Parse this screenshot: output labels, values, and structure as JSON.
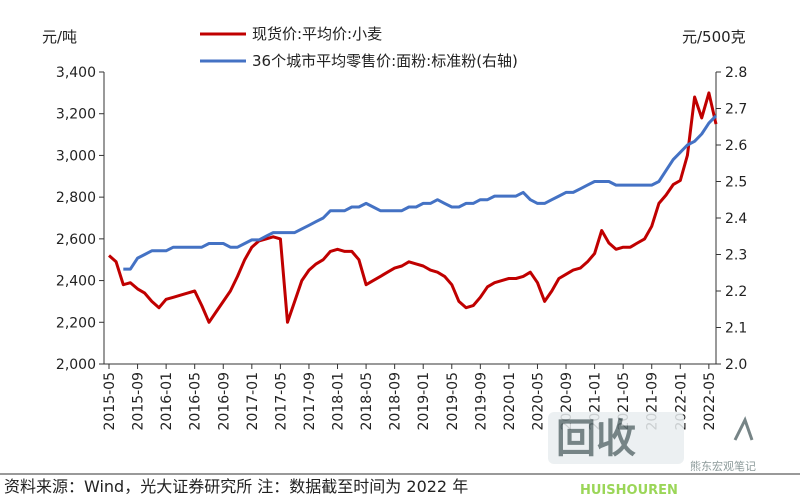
{
  "chart_data": {
    "type": "line",
    "left_axis_unit": "元/吨",
    "right_axis_unit": "元/500克",
    "left_ylim": [
      2000,
      3400
    ],
    "left_ticks": [
      "2,000",
      "2,200",
      "2,400",
      "2,600",
      "2,800",
      "3,000",
      "3,200",
      "3,400"
    ],
    "right_ylim": [
      2.0,
      2.8
    ],
    "right_ticks": [
      "2.0",
      "2.1",
      "2.2",
      "2.3",
      "2.4",
      "2.5",
      "2.6",
      "2.7",
      "2.8"
    ],
    "x_ticks": [
      "2015-05",
      "2015-09",
      "2016-01",
      "2016-05",
      "2016-09",
      "2017-01",
      "2017-05",
      "2017-09",
      "2018-01",
      "2018-05",
      "2018-09",
      "2019-01",
      "2019-05",
      "2019-09",
      "2020-01",
      "2020-05",
      "2020-09",
      "2021-01",
      "2021-05",
      "2021-09",
      "2022-01",
      "2022-05"
    ],
    "grid": false,
    "legend_placement": "top",
    "series": [
      {
        "name": "现货价:平均价:小麦",
        "axis": "left",
        "color": "#c00000",
        "points": [
          [
            "2015-05",
            2520
          ],
          [
            "2015-06",
            2490
          ],
          [
            "2015-07",
            2380
          ],
          [
            "2015-08",
            2390
          ],
          [
            "2015-09",
            2360
          ],
          [
            "2015-10",
            2340
          ],
          [
            "2015-11",
            2300
          ],
          [
            "2015-12",
            2270
          ],
          [
            "2016-01",
            2310
          ],
          [
            "2016-02",
            2320
          ],
          [
            "2016-03",
            2330
          ],
          [
            "2016-04",
            2340
          ],
          [
            "2016-05",
            2350
          ],
          [
            "2016-06",
            2280
          ],
          [
            "2016-07",
            2200
          ],
          [
            "2016-08",
            2250
          ],
          [
            "2016-09",
            2300
          ],
          [
            "2016-10",
            2350
          ],
          [
            "2016-11",
            2420
          ],
          [
            "2016-12",
            2500
          ],
          [
            "2017-01",
            2560
          ],
          [
            "2017-02",
            2590
          ],
          [
            "2017-03",
            2600
          ],
          [
            "2017-04",
            2610
          ],
          [
            "2017-05",
            2600
          ],
          [
            "2017-06",
            2200
          ],
          [
            "2017-07",
            2300
          ],
          [
            "2017-08",
            2400
          ],
          [
            "2017-09",
            2450
          ],
          [
            "2017-10",
            2480
          ],
          [
            "2017-11",
            2500
          ],
          [
            "2017-12",
            2540
          ],
          [
            "2018-01",
            2550
          ],
          [
            "2018-02",
            2540
          ],
          [
            "2018-03",
            2540
          ],
          [
            "2018-04",
            2500
          ],
          [
            "2018-05",
            2380
          ],
          [
            "2018-06",
            2400
          ],
          [
            "2018-07",
            2420
          ],
          [
            "2018-08",
            2440
          ],
          [
            "2018-09",
            2460
          ],
          [
            "2018-10",
            2470
          ],
          [
            "2018-11",
            2490
          ],
          [
            "2018-12",
            2480
          ],
          [
            "2019-01",
            2470
          ],
          [
            "2019-02",
            2450
          ],
          [
            "2019-03",
            2440
          ],
          [
            "2019-04",
            2420
          ],
          [
            "2019-05",
            2380
          ],
          [
            "2019-06",
            2300
          ],
          [
            "2019-07",
            2270
          ],
          [
            "2019-08",
            2280
          ],
          [
            "2019-09",
            2320
          ],
          [
            "2019-10",
            2370
          ],
          [
            "2019-11",
            2390
          ],
          [
            "2019-12",
            2400
          ],
          [
            "2020-01",
            2410
          ],
          [
            "2020-02",
            2410
          ],
          [
            "2020-03",
            2420
          ],
          [
            "2020-04",
            2440
          ],
          [
            "2020-05",
            2390
          ],
          [
            "2020-06",
            2300
          ],
          [
            "2020-07",
            2350
          ],
          [
            "2020-08",
            2410
          ],
          [
            "2020-09",
            2430
          ],
          [
            "2020-10",
            2450
          ],
          [
            "2020-11",
            2460
          ],
          [
            "2020-12",
            2490
          ],
          [
            "2021-01",
            2530
          ],
          [
            "2021-02",
            2640
          ],
          [
            "2021-03",
            2580
          ],
          [
            "2021-04",
            2550
          ],
          [
            "2021-05",
            2560
          ],
          [
            "2021-06",
            2560
          ],
          [
            "2021-07",
            2580
          ],
          [
            "2021-08",
            2600
          ],
          [
            "2021-09",
            2660
          ],
          [
            "2021-10",
            2770
          ],
          [
            "2021-11",
            2810
          ],
          [
            "2021-12",
            2860
          ],
          [
            "2022-01",
            2880
          ],
          [
            "2022-02",
            3000
          ],
          [
            "2022-03",
            3280
          ],
          [
            "2022-04",
            3180
          ],
          [
            "2022-05",
            3300
          ],
          [
            "2022-06",
            3150
          ]
        ]
      },
      {
        "name": "36个城市平均零售价:面粉:标准粉(右轴)",
        "axis": "right",
        "color": "#4472c4",
        "points": [
          [
            "2015-07",
            2.26
          ],
          [
            "2015-08",
            2.26
          ],
          [
            "2015-09",
            2.29
          ],
          [
            "2015-10",
            2.3
          ],
          [
            "2015-11",
            2.31
          ],
          [
            "2015-12",
            2.31
          ],
          [
            "2016-01",
            2.31
          ],
          [
            "2016-02",
            2.32
          ],
          [
            "2016-03",
            2.32
          ],
          [
            "2016-04",
            2.32
          ],
          [
            "2016-05",
            2.32
          ],
          [
            "2016-06",
            2.32
          ],
          [
            "2016-07",
            2.33
          ],
          [
            "2016-08",
            2.33
          ],
          [
            "2016-09",
            2.33
          ],
          [
            "2016-10",
            2.32
          ],
          [
            "2016-11",
            2.32
          ],
          [
            "2016-12",
            2.33
          ],
          [
            "2017-01",
            2.34
          ],
          [
            "2017-02",
            2.34
          ],
          [
            "2017-03",
            2.35
          ],
          [
            "2017-04",
            2.36
          ],
          [
            "2017-05",
            2.36
          ],
          [
            "2017-06",
            2.36
          ],
          [
            "2017-07",
            2.36
          ],
          [
            "2017-08",
            2.37
          ],
          [
            "2017-09",
            2.38
          ],
          [
            "2017-10",
            2.39
          ],
          [
            "2017-11",
            2.4
          ],
          [
            "2017-12",
            2.42
          ],
          [
            "2018-01",
            2.42
          ],
          [
            "2018-02",
            2.42
          ],
          [
            "2018-03",
            2.43
          ],
          [
            "2018-04",
            2.43
          ],
          [
            "2018-05",
            2.44
          ],
          [
            "2018-06",
            2.43
          ],
          [
            "2018-07",
            2.42
          ],
          [
            "2018-08",
            2.42
          ],
          [
            "2018-09",
            2.42
          ],
          [
            "2018-10",
            2.42
          ],
          [
            "2018-11",
            2.43
          ],
          [
            "2018-12",
            2.43
          ],
          [
            "2019-01",
            2.44
          ],
          [
            "2019-02",
            2.44
          ],
          [
            "2019-03",
            2.45
          ],
          [
            "2019-04",
            2.44
          ],
          [
            "2019-05",
            2.43
          ],
          [
            "2019-06",
            2.43
          ],
          [
            "2019-07",
            2.44
          ],
          [
            "2019-08",
            2.44
          ],
          [
            "2019-09",
            2.45
          ],
          [
            "2019-10",
            2.45
          ],
          [
            "2019-11",
            2.46
          ],
          [
            "2019-12",
            2.46
          ],
          [
            "2020-01",
            2.46
          ],
          [
            "2020-02",
            2.46
          ],
          [
            "2020-03",
            2.47
          ],
          [
            "2020-04",
            2.45
          ],
          [
            "2020-05",
            2.44
          ],
          [
            "2020-06",
            2.44
          ],
          [
            "2020-07",
            2.45
          ],
          [
            "2020-08",
            2.46
          ],
          [
            "2020-09",
            2.47
          ],
          [
            "2020-10",
            2.47
          ],
          [
            "2020-11",
            2.48
          ],
          [
            "2020-12",
            2.49
          ],
          [
            "2021-01",
            2.5
          ],
          [
            "2021-02",
            2.5
          ],
          [
            "2021-03",
            2.5
          ],
          [
            "2021-04",
            2.49
          ],
          [
            "2021-05",
            2.49
          ],
          [
            "2021-06",
            2.49
          ],
          [
            "2021-07",
            2.49
          ],
          [
            "2021-08",
            2.49
          ],
          [
            "2021-09",
            2.49
          ],
          [
            "2021-10",
            2.5
          ],
          [
            "2021-11",
            2.53
          ],
          [
            "2021-12",
            2.56
          ],
          [
            "2022-01",
            2.58
          ],
          [
            "2022-02",
            2.6
          ],
          [
            "2022-03",
            2.61
          ],
          [
            "2022-04",
            2.63
          ],
          [
            "2022-05",
            2.66
          ],
          [
            "2022-06",
            2.68
          ]
        ]
      }
    ]
  },
  "footer": {
    "source_text": "资料来源：Wind，光大证券研究所   注：数据截至时间为 2022 年",
    "watermark_text": "熊东宏观笔记",
    "logo_text": "回收",
    "logo_subtext": "HUISHOUREN"
  }
}
